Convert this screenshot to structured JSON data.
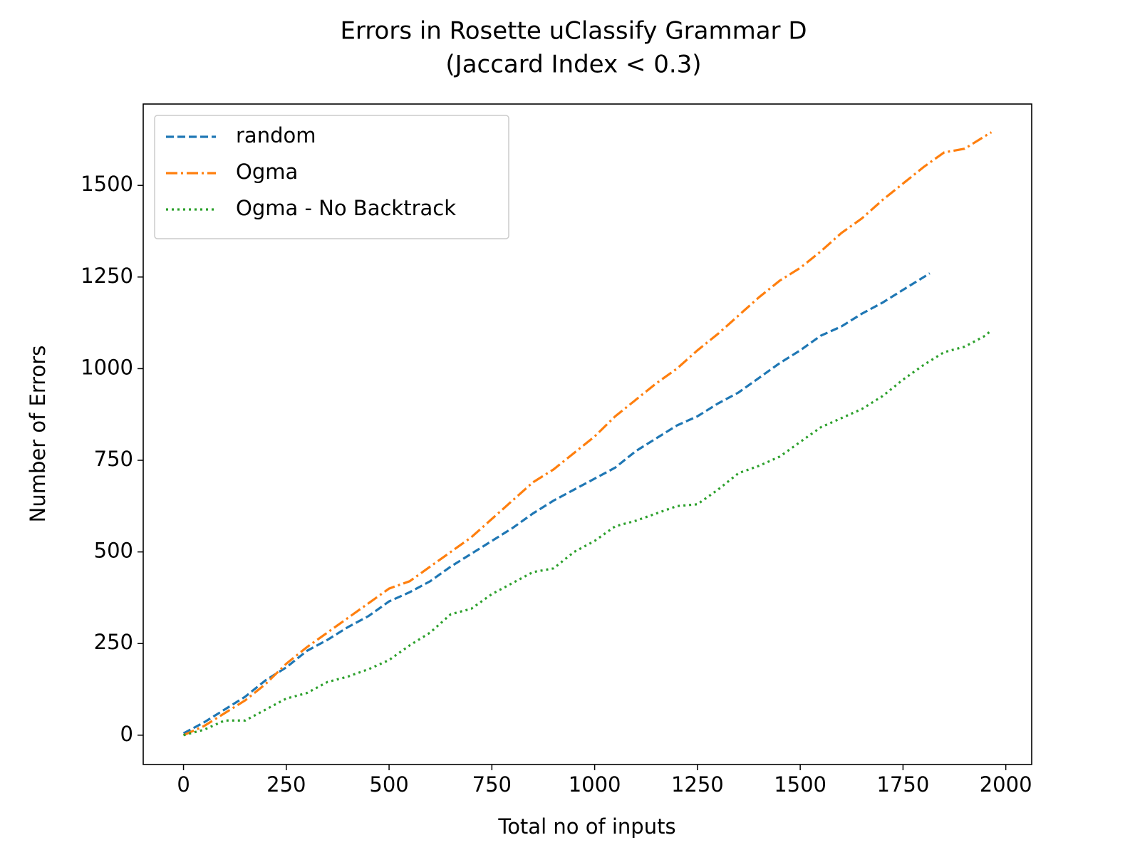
{
  "chart_data": {
    "type": "line",
    "title": "Errors in Rosette uClassify Grammar D",
    "subtitle": "(Jaccard Index < 0.3)",
    "x_label": "Total no of inputs",
    "y_label": "Number of Errors",
    "xlim": [
      -98,
      2063
    ],
    "ylim": [
      -80,
      1722
    ],
    "xticks": [
      0,
      250,
      500,
      750,
      1000,
      1250,
      1500,
      1750,
      2000
    ],
    "yticks": [
      0,
      250,
      500,
      750,
      1000,
      1250,
      1500
    ],
    "grid": false,
    "legend": "upper left",
    "series": [
      {
        "name": "random",
        "color": "#1f77b4",
        "linestyle": "dashed",
        "x": [
          0,
          50,
          100,
          150,
          200,
          250,
          300,
          350,
          400,
          450,
          500,
          550,
          600,
          650,
          700,
          750,
          800,
          850,
          900,
          950,
          1000,
          1050,
          1100,
          1150,
          1200,
          1250,
          1300,
          1350,
          1400,
          1450,
          1500,
          1550,
          1600,
          1650,
          1700,
          1750,
          1815
        ],
        "values": [
          5,
          35,
          70,
          105,
          150,
          185,
          230,
          260,
          295,
          325,
          365,
          390,
          420,
          460,
          495,
          530,
          565,
          605,
          640,
          670,
          700,
          730,
          775,
          810,
          845,
          870,
          905,
          935,
          975,
          1015,
          1050,
          1090,
          1115,
          1150,
          1180,
          1215,
          1260
        ]
      },
      {
        "name": "Ogma",
        "color": "#ff7f0e",
        "linestyle": "dashdot",
        "x": [
          0,
          50,
          100,
          150,
          200,
          250,
          300,
          350,
          400,
          450,
          500,
          550,
          600,
          650,
          700,
          750,
          800,
          850,
          900,
          950,
          1000,
          1050,
          1100,
          1150,
          1200,
          1250,
          1300,
          1350,
          1400,
          1450,
          1500,
          1550,
          1600,
          1650,
          1700,
          1750,
          1800,
          1850,
          1900,
          1950,
          1965
        ],
        "values": [
          0,
          25,
          60,
          95,
          140,
          195,
          240,
          280,
          320,
          360,
          400,
          420,
          460,
          500,
          540,
          590,
          640,
          690,
          725,
          770,
          815,
          870,
          915,
          960,
          1000,
          1050,
          1095,
          1145,
          1195,
          1240,
          1275,
          1320,
          1370,
          1410,
          1460,
          1505,
          1550,
          1590,
          1600,
          1635,
          1645
        ]
      },
      {
        "name": "Ogma - No Backtrack",
        "color": "#2ca02c",
        "linestyle": "dotted",
        "x": [
          0,
          50,
          100,
          150,
          200,
          250,
          300,
          350,
          400,
          450,
          500,
          550,
          600,
          650,
          700,
          750,
          800,
          850,
          900,
          950,
          1000,
          1050,
          1100,
          1150,
          1200,
          1250,
          1300,
          1350,
          1400,
          1450,
          1500,
          1550,
          1600,
          1650,
          1700,
          1750,
          1800,
          1850,
          1900,
          1950,
          1965
        ],
        "values": [
          0,
          15,
          40,
          40,
          70,
          100,
          115,
          145,
          160,
          180,
          205,
          245,
          280,
          330,
          345,
          385,
          415,
          445,
          455,
          500,
          530,
          570,
          585,
          605,
          625,
          630,
          670,
          715,
          735,
          760,
          800,
          840,
          865,
          890,
          925,
          970,
          1010,
          1045,
          1060,
          1090,
          1105
        ]
      }
    ]
  }
}
